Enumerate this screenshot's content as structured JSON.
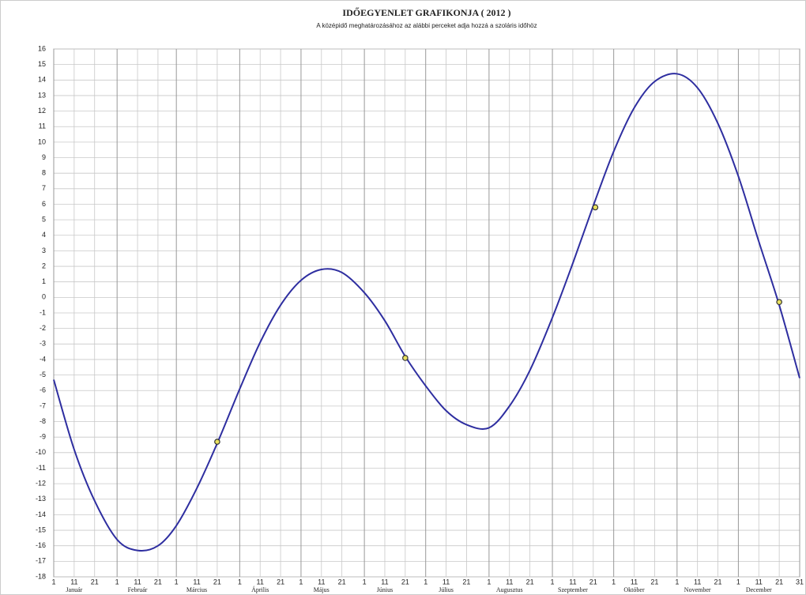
{
  "chart_data": {
    "type": "line",
    "title": "IDŐEGYENLET GRAFIKONJA ( 2012 )",
    "subtitle": "A középidő meghatározásához az alábbi perceket adja hozzá a szoláris időhöz",
    "months": [
      "Január",
      "Február",
      "Március",
      "Április",
      "Május",
      "Június",
      "Július",
      "Augusztus",
      "Szeptember",
      "Október",
      "November",
      "December"
    ],
    "xlim": [
      1,
      366
    ],
    "xticks": [
      {
        "value": 1,
        "label": "1"
      },
      {
        "value": 11,
        "label": "11"
      },
      {
        "value": 21,
        "label": "21"
      },
      {
        "value": 32,
        "label": "1"
      },
      {
        "value": 42,
        "label": "11"
      },
      {
        "value": 52,
        "label": "21"
      },
      {
        "value": 61,
        "label": "1"
      },
      {
        "value": 71,
        "label": "11"
      },
      {
        "value": 81,
        "label": "21"
      },
      {
        "value": 92,
        "label": "1"
      },
      {
        "value": 102,
        "label": "11"
      },
      {
        "value": 112,
        "label": "21"
      },
      {
        "value": 122,
        "label": "1"
      },
      {
        "value": 132,
        "label": "11"
      },
      {
        "value": 142,
        "label": "21"
      },
      {
        "value": 153,
        "label": "1"
      },
      {
        "value": 163,
        "label": "11"
      },
      {
        "value": 173,
        "label": "21"
      },
      {
        "value": 183,
        "label": "1"
      },
      {
        "value": 193,
        "label": "11"
      },
      {
        "value": 203,
        "label": "21"
      },
      {
        "value": 214,
        "label": "1"
      },
      {
        "value": 224,
        "label": "11"
      },
      {
        "value": 234,
        "label": "21"
      },
      {
        "value": 245,
        "label": "1"
      },
      {
        "value": 255,
        "label": "11"
      },
      {
        "value": 265,
        "label": "21"
      },
      {
        "value": 275,
        "label": "1"
      },
      {
        "value": 285,
        "label": "11"
      },
      {
        "value": 295,
        "label": "21"
      },
      {
        "value": 306,
        "label": "1"
      },
      {
        "value": 316,
        "label": "11"
      },
      {
        "value": 326,
        "label": "21"
      },
      {
        "value": 336,
        "label": "1"
      },
      {
        "value": 346,
        "label": "11"
      },
      {
        "value": 356,
        "label": "21"
      },
      {
        "value": 366,
        "label": "31"
      }
    ],
    "ylim": [
      -18,
      16
    ],
    "yticks": [
      -18,
      -17,
      -16,
      -15,
      -14,
      -13,
      -12,
      -11,
      -10,
      -9,
      -8,
      -7,
      -6,
      -5,
      -4,
      -3,
      -2,
      -1,
      0,
      1,
      2,
      3,
      4,
      5,
      6,
      7,
      8,
      9,
      10,
      11,
      12,
      13,
      14,
      15,
      16
    ],
    "grid": true,
    "series": [
      {
        "color": "#2e2ea0",
        "x": [
          1,
          11,
          21,
          32,
          42,
          52,
          61,
          71,
          81,
          92,
          102,
          112,
          122,
          132,
          142,
          153,
          163,
          173,
          183,
          193,
          203,
          214,
          224,
          234,
          245,
          255,
          265,
          275,
          285,
          295,
          306,
          316,
          326,
          336,
          346,
          356,
          366
        ],
        "values": [
          -5.3,
          -9.8,
          -13.1,
          -15.6,
          -16.3,
          -16.0,
          -14.7,
          -12.3,
          -9.4,
          -5.9,
          -2.9,
          -0.5,
          1.1,
          1.8,
          1.6,
          0.3,
          -1.5,
          -3.8,
          -5.7,
          -7.3,
          -8.2,
          -8.4,
          -7.0,
          -4.7,
          -1.3,
          2.2,
          5.9,
          9.4,
          12.2,
          13.9,
          14.4,
          13.5,
          11.2,
          7.8,
          3.6,
          -0.5,
          -5.2
        ]
      },
      {
        "color": "#e8e060",
        "markers_only": true,
        "x": [
          81,
          173,
          266,
          356
        ],
        "values": [
          -9.3,
          -3.9,
          5.8,
          -0.3
        ]
      }
    ]
  }
}
